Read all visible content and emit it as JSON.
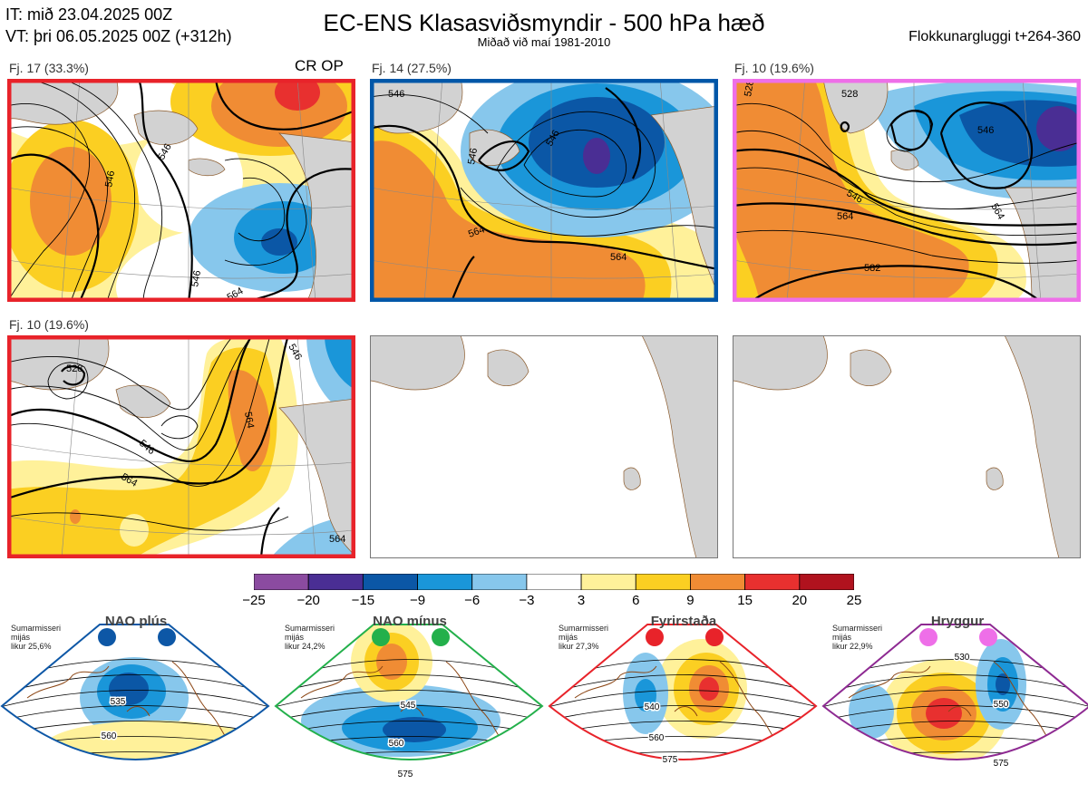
{
  "header": {
    "it_line": "IT: mið 23.04.2025 00Z",
    "vt_line": "VT: þri 06.05.2025 00Z  (+312h)",
    "title": "EC-ENS Klasasviðsmyndir - 500 hPa hæð",
    "subtitle": "Miðað við maí 1981-2010",
    "window": "Flokkunargluggi t+264-360"
  },
  "panels": [
    {
      "label": "Fj. 17 (33.3%)",
      "extra": "CR OP",
      "frame_color": "#e8232a"
    },
    {
      "label": "Fj. 14 (27.5%)",
      "frame_color": "#0057a8"
    },
    {
      "label": "Fj. 10 (19.6%)",
      "frame_color": "#ee6fe8"
    },
    {
      "label": "Fj. 10 (19.6%)",
      "frame_color": "#e8232a"
    },
    {
      "label": "",
      "frame_color": "#777777"
    },
    {
      "label": "",
      "frame_color": "#777777"
    }
  ],
  "contour_labels": {
    "p1": [
      "546",
      "546",
      "546",
      "564"
    ],
    "p2": [
      "546",
      "546",
      "546",
      "564",
      "564"
    ],
    "p3": [
      "528",
      "528",
      "546",
      "546",
      "564",
      "564",
      "582"
    ],
    "p4": [
      "546",
      "546",
      "564",
      "564",
      "564",
      "528"
    ]
  },
  "regimes": [
    {
      "name": "NAO plús",
      "note": [
        "Sumarmisseri",
        "mijás",
        "likur 25,6%"
      ],
      "dot_color": "#0d57a6",
      "frame_color": "#0d57a6",
      "contour_labels": [
        "535",
        "560"
      ]
    },
    {
      "name": "NAO mínus",
      "note": [
        "Sumarmisseri",
        "mijás",
        "likur 24,2%"
      ],
      "dot_color": "#23b04b",
      "frame_color": "#23b04b",
      "contour_labels": [
        "545",
        "560",
        "575"
      ]
    },
    {
      "name": "Fyrirstaða",
      "note": [
        "Sumarmisseri",
        "mijás",
        "likur 27,3%"
      ],
      "dot_color": "#e8232a",
      "frame_color": "#e8232a",
      "contour_labels": [
        "540",
        "560",
        "575"
      ]
    },
    {
      "name": "Hryggur",
      "note": [
        "Sumarmisseri",
        "mijás",
        "likur 22,9%"
      ],
      "dot_color": "#ee6fe8",
      "frame_color": "#8e2a92",
      "contour_labels": [
        "530",
        "550",
        "575"
      ]
    }
  ],
  "chart_data": {
    "type": "heatmap",
    "title": "EC-ENS Klasasviðsmyndir - 500 hPa hæð",
    "colorbar": {
      "ticks": [
        "−25",
        "−20",
        "−15",
        "−9",
        "−6",
        "−3",
        "3",
        "6",
        "9",
        "15",
        "20",
        "25"
      ],
      "bins": [
        {
          "from": -25,
          "to": -20,
          "color": "#8b4ba0"
        },
        {
          "from": -20,
          "to": -15,
          "color": "#4a2e94"
        },
        {
          "from": -15,
          "to": -9,
          "color": "#0b57a6"
        },
        {
          "from": -9,
          "to": -6,
          "color": "#1a96d9"
        },
        {
          "from": -6,
          "to": -3,
          "color": "#87c7ec"
        },
        {
          "from": -3,
          "to": 3,
          "color": "#ffffff"
        },
        {
          "from": 3,
          "to": 6,
          "color": "#fff19a"
        },
        {
          "from": 6,
          "to": 9,
          "color": "#fbcf22"
        },
        {
          "from": 9,
          "to": 15,
          "color": "#f08c34"
        },
        {
          "from": 15,
          "to": 20,
          "color": "#e8302f"
        },
        {
          "from": 20,
          "to": 25,
          "color": "#b0121e"
        }
      ]
    }
  }
}
